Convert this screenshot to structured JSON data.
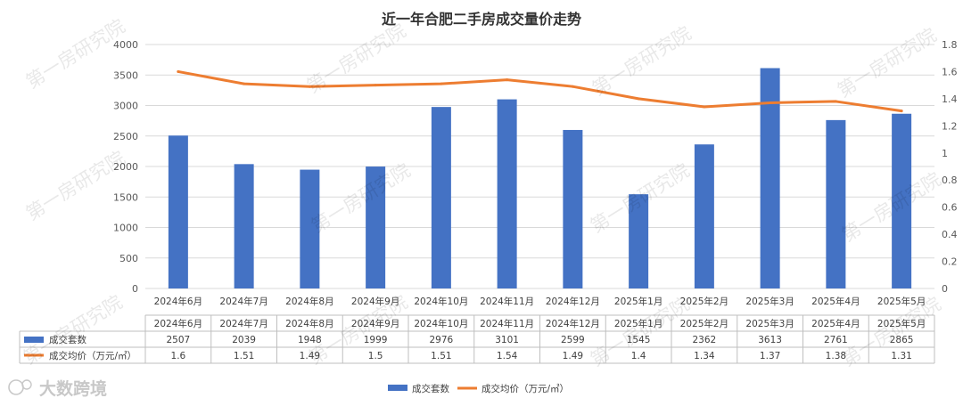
{
  "chart_data": {
    "type": "bar",
    "title": "近一年合肥二手房成交量价走势",
    "categories": [
      "2024年6月",
      "2024年7月",
      "2024年8月",
      "2024年9月",
      "2024年10月",
      "2024年11月",
      "2024年12月",
      "2025年1月",
      "2025年2月",
      "2025年3月",
      "2025年4月",
      "2025年5月"
    ],
    "series": [
      {
        "name": "成交套数",
        "type": "bar",
        "axis": "left",
        "color": "#4472C4",
        "values": [
          2507,
          2039,
          1948,
          1999,
          2976,
          3101,
          2599,
          1545,
          2362,
          3613,
          2761,
          2865
        ]
      },
      {
        "name": "成交均价（万元/㎡）",
        "type": "line",
        "axis": "right",
        "color": "#ED7D31",
        "values": [
          1.6,
          1.51,
          1.49,
          1.5,
          1.51,
          1.54,
          1.49,
          1.4,
          1.34,
          1.37,
          1.38,
          1.31
        ]
      }
    ],
    "left_axis": {
      "min": 0,
      "max": 4000,
      "ticks": [
        "0",
        "500",
        "1000",
        "1500",
        "2000",
        "2500",
        "3000",
        "3500",
        "4000"
      ]
    },
    "right_axis": {
      "min": 0,
      "max": 1.8,
      "ticks": [
        "0",
        "0.2",
        "0.4",
        "0.6",
        "0.8",
        "1",
        "1.2",
        "1.4",
        "1.6",
        "1.8"
      ]
    },
    "table_values": {
      "bar": [
        "2507",
        "2039",
        "1948",
        "1999",
        "2976",
        "3101",
        "2599",
        "1545",
        "2362",
        "3613",
        "2761",
        "2865"
      ],
      "line": [
        "1.6",
        "1.51",
        "1.49",
        "1.5",
        "1.51",
        "1.54",
        "1.49",
        "1.4",
        "1.34",
        "1.37",
        "1.38",
        "1.31"
      ]
    },
    "grid": true,
    "legend": "bottom"
  },
  "watermark": "第一房研究院",
  "logo_text": "大数跨境"
}
